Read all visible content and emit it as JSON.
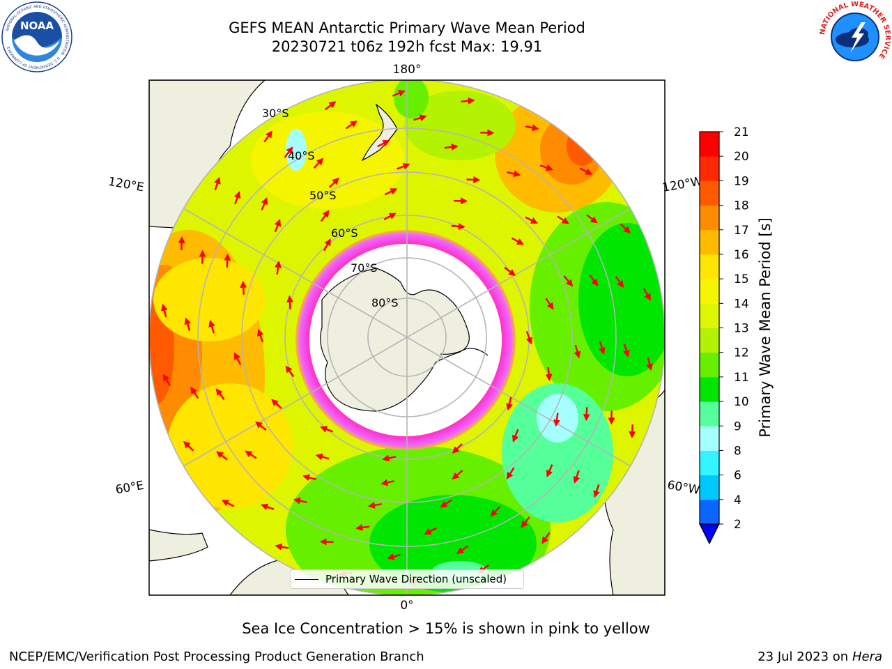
{
  "header": {
    "title_line1": "GEFS MEAN Antarctic Primary Wave Mean Period",
    "title_line2": "20230721 t06z 192h fcst   Max: 19.91"
  },
  "logos": {
    "noaa": {
      "text": "NOAA",
      "ring_text": "NATIONAL OCEANIC AND ATMOSPHERIC ADMINISTRATION · U.S. DEPARTMENT OF COMMERCE"
    },
    "nws": {
      "ring_text": "NATIONAL WEATHER SERVICE"
    }
  },
  "map": {
    "projection": "South Polar Stereographic",
    "longitude_labels": [
      "180°",
      "120°E",
      "120°W",
      "60°E",
      "60°W",
      "0°"
    ],
    "latitude_labels": [
      "30°S",
      "40°S",
      "50°S",
      "60°S",
      "70°S",
      "80°S"
    ],
    "legend": "Primary Wave Direction (unscaled)"
  },
  "colorbar": {
    "label": "Primary Wave Mean Period [s]",
    "ticks": [
      "2",
      "4",
      "6",
      "8",
      "9",
      "10",
      "11",
      "12",
      "13",
      "14",
      "15",
      "16",
      "17",
      "18",
      "19",
      "20",
      "21"
    ],
    "colors": [
      "#0a66ff",
      "#00c8ff",
      "#33f5ff",
      "#a6ffff",
      "#55ff99",
      "#00e600",
      "#66f000",
      "#b3f200",
      "#dcf700",
      "#f5f500",
      "#ffe600",
      "#ffbb00",
      "#ff8c00",
      "#ff5a00",
      "#ff2a00",
      "#ff0000"
    ],
    "extend_min_color": "#0000ff"
  },
  "caption": "Sea Ice Concentration > 15% is shown in pink to yellow",
  "footer": {
    "left": "NCEP/EMC/Verification Post Processing Product Generation Branch",
    "right_prefix": "23 Jul 2023 on ",
    "right_machine": "Hera"
  }
}
